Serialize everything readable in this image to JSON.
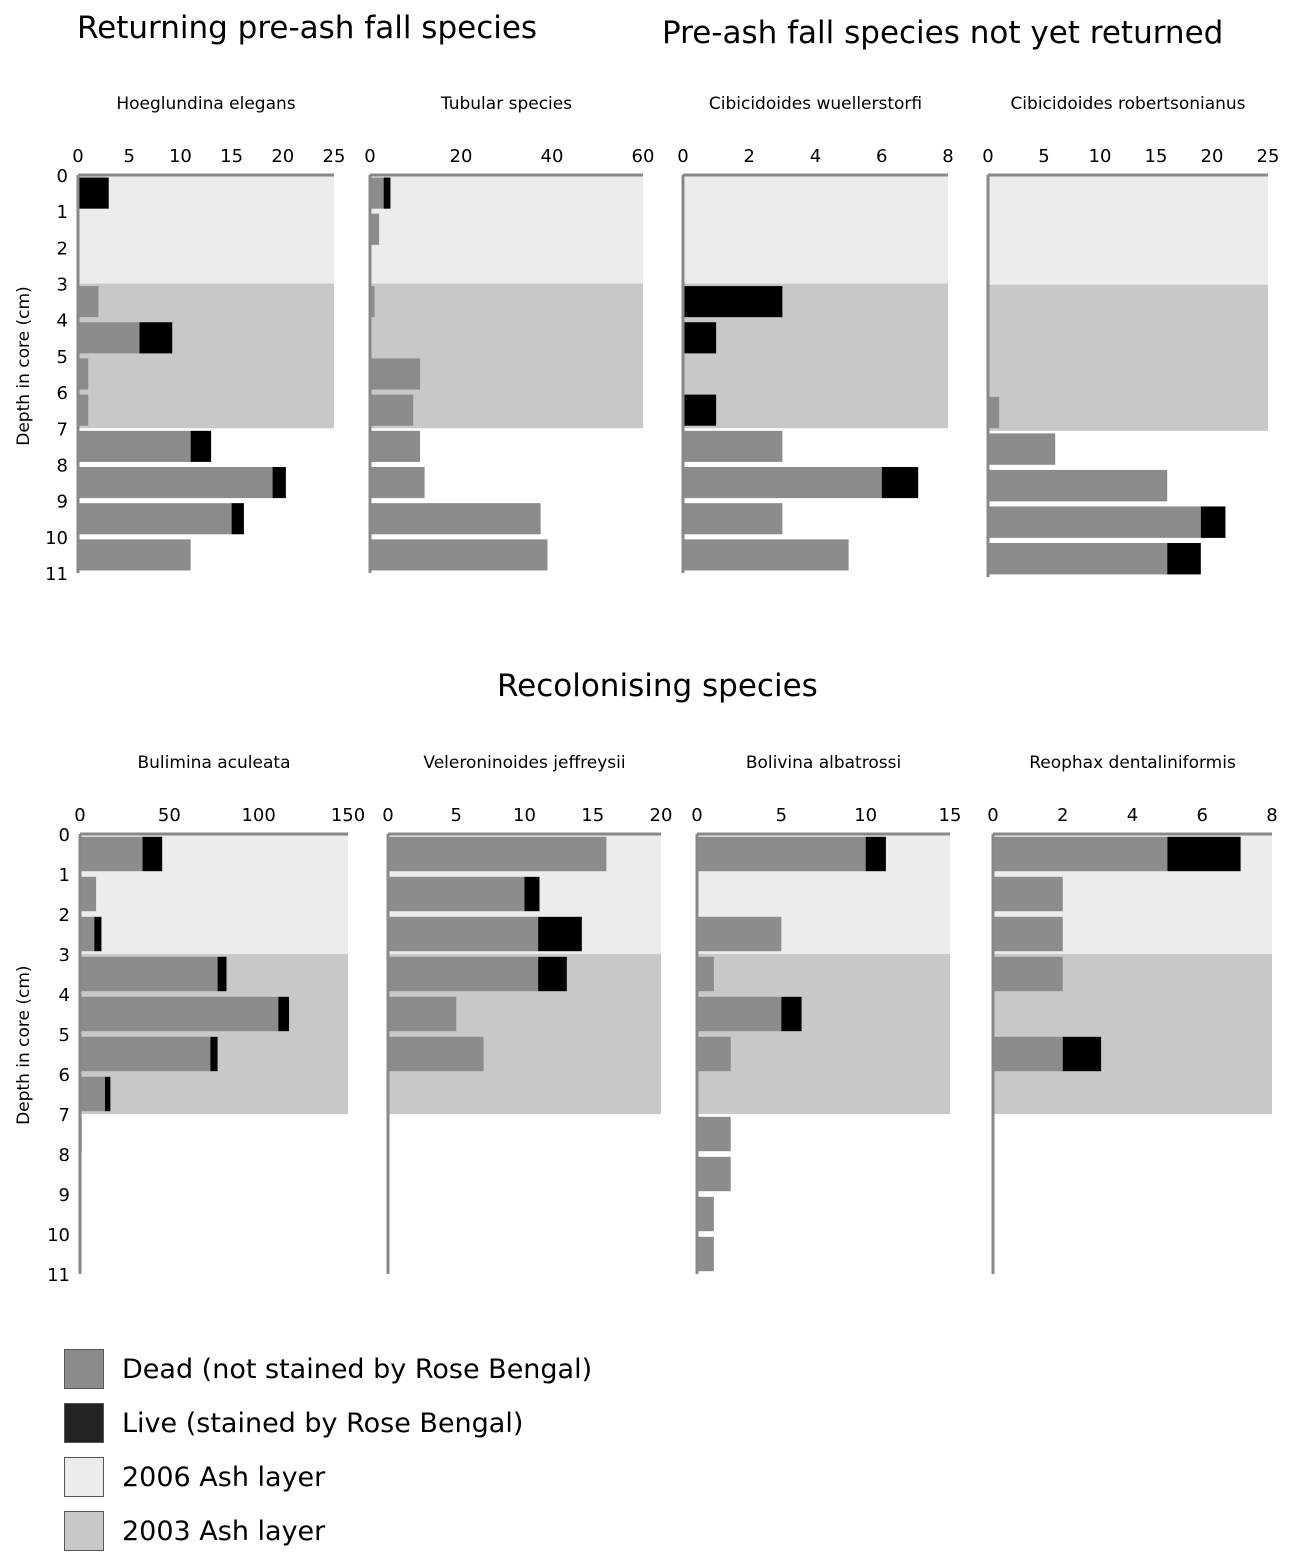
{
  "sections": {
    "returning": "Returning pre-ash fall species",
    "not_returned": "Pre-ash fall species not yet returned",
    "recolonising": "Recolonising species"
  },
  "colors": {
    "dead": "#8c8c8c",
    "live": "#000000",
    "ash2006": "#ececec",
    "ash2003": "#c8c8c8",
    "axis": "#888888"
  },
  "legend": [
    {
      "label": "Dead (not stained by Rose Bengal)",
      "color": "#8c8c8c"
    },
    {
      "label": "Live (stained by Rose Bengal)",
      "color": "#222222"
    },
    {
      "label": "2006 Ash layer",
      "color": "#ececec"
    },
    {
      "label": "2003 Ash layer",
      "color": "#c8c8c8"
    }
  ],
  "chart_data": [
    {
      "type": "bar",
      "orientation": "horizontal",
      "stacked": true,
      "title": "Hoeglundina elegans",
      "ylabel": "Depth in core (cm)",
      "xlim": [
        0,
        25
      ],
      "xticks": [
        0,
        5,
        10,
        15,
        20,
        25
      ],
      "depth_labels": [
        0,
        1,
        2,
        3,
        4,
        5,
        6,
        7,
        8,
        9,
        10,
        11
      ],
      "ash2006": [
        0,
        3
      ],
      "ash2003": [
        3,
        7
      ],
      "dead": [
        0,
        0,
        0,
        2,
        6,
        1,
        1,
        11,
        19,
        15,
        11
      ],
      "live": [
        3,
        0,
        0,
        0,
        3.2,
        0,
        0,
        2,
        1.3,
        1.2,
        0
      ]
    },
    {
      "type": "bar",
      "orientation": "horizontal",
      "stacked": true,
      "title": "Tubular species",
      "xlim": [
        0,
        60
      ],
      "xticks": [
        0,
        20,
        40,
        60
      ],
      "depth_labels": [],
      "ash2006": [
        0,
        3
      ],
      "ash2003": [
        3,
        7
      ],
      "dead": [
        3,
        2,
        0,
        1,
        0,
        11,
        9.5,
        11,
        12,
        37.5,
        39
      ],
      "live": [
        1.5,
        0,
        0,
        0,
        0,
        0,
        0,
        0,
        0,
        0,
        0
      ]
    },
    {
      "type": "bar",
      "orientation": "horizontal",
      "stacked": true,
      "title": "Cibicidoides wuellerstorfi",
      "xlim": [
        0,
        8
      ],
      "xticks": [
        0,
        2,
        4,
        6,
        8
      ],
      "depth_labels": [],
      "ash2006": [
        0,
        3
      ],
      "ash2003": [
        3,
        7
      ],
      "dead": [
        0,
        0,
        0,
        0,
        0,
        0,
        0,
        3,
        6,
        3,
        5
      ],
      "live": [
        0,
        0,
        0,
        3,
        1,
        0,
        1,
        0,
        1.1,
        0,
        0
      ]
    },
    {
      "type": "bar",
      "orientation": "horizontal",
      "stacked": true,
      "title": "Cibicidoides robertsonianus",
      "xlim": [
        0,
        25
      ],
      "xticks": [
        0,
        5,
        10,
        15,
        20,
        25
      ],
      "depth_labels": [],
      "ash2006": [
        0,
        3
      ],
      "ash2003": [
        3,
        7
      ],
      "dead": [
        0,
        0,
        0,
        0,
        0,
        0,
        1,
        6,
        16,
        19,
        16
      ],
      "live": [
        0,
        0,
        0,
        0,
        0,
        0,
        0,
        0,
        0,
        2.2,
        3
      ]
    },
    {
      "type": "bar",
      "orientation": "horizontal",
      "stacked": true,
      "title": "Bulimina aculeata",
      "ylabel": "Depth in core (cm)",
      "xlim": [
        0,
        150
      ],
      "xticks": [
        0,
        50,
        100,
        150
      ],
      "depth_labels": [
        0,
        1,
        2,
        3,
        4,
        5,
        6,
        7,
        8,
        9,
        10,
        11
      ],
      "ash2006": [
        0,
        3
      ],
      "ash2003": [
        3,
        7
      ],
      "dead": [
        35,
        9,
        8,
        77,
        111,
        73,
        14,
        1,
        0,
        0,
        0
      ],
      "live": [
        11,
        0,
        4,
        5,
        6,
        4,
        3,
        0,
        0,
        0,
        0
      ]
    },
    {
      "type": "bar",
      "orientation": "horizontal",
      "stacked": true,
      "title": "Veleroninoides jeffreysii",
      "xlim": [
        0,
        20
      ],
      "xticks": [
        0,
        5,
        10,
        15,
        20
      ],
      "depth_labels": [],
      "ash2006": [
        0,
        3
      ],
      "ash2003": [
        3,
        7
      ],
      "dead": [
        16,
        10,
        11,
        11,
        5,
        7,
        0,
        0,
        0,
        0,
        0
      ],
      "live": [
        0,
        1.1,
        3.2,
        2.1,
        0,
        0,
        0,
        0,
        0,
        0,
        0
      ]
    },
    {
      "type": "bar",
      "orientation": "horizontal",
      "stacked": true,
      "title": "Bolivina albatrossi",
      "xlim": [
        0,
        15
      ],
      "xticks": [
        0,
        5,
        10,
        15
      ],
      "depth_labels": [],
      "ash2006": [
        0,
        3
      ],
      "ash2003": [
        3,
        7
      ],
      "dead": [
        10,
        0,
        5,
        1,
        5,
        2,
        0,
        2,
        2,
        1,
        1
      ],
      "live": [
        1.2,
        0,
        0,
        0,
        1.2,
        0,
        0,
        0,
        0,
        0,
        0
      ]
    },
    {
      "type": "bar",
      "orientation": "horizontal",
      "stacked": true,
      "title": "Reophax dentaliniformis",
      "xlim": [
        0,
        8
      ],
      "xticks": [
        0,
        2,
        4,
        6,
        8
      ],
      "depth_labels": [],
      "ash2006": [
        0,
        3
      ],
      "ash2003": [
        3,
        7
      ],
      "dead": [
        5,
        2,
        2,
        2,
        0,
        2,
        0,
        0,
        0,
        0,
        0
      ],
      "live": [
        2.1,
        0,
        0,
        0,
        0,
        1.1,
        0,
        0,
        0,
        0,
        0
      ]
    }
  ]
}
